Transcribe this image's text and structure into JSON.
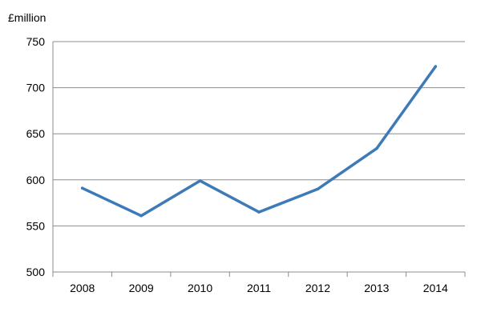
{
  "chart_data": {
    "type": "line",
    "unit_label": "£million",
    "categories": [
      "2008",
      "2009",
      "2010",
      "2011",
      "2012",
      "2013",
      "2014"
    ],
    "series": [
      {
        "values": [
          591,
          561,
          599,
          565,
          590,
          634,
          723
        ],
        "color": "#3d7ab8"
      }
    ],
    "ylim": [
      500,
      750
    ],
    "yticks": [
      "500",
      "550",
      "600",
      "650",
      "700",
      "750"
    ],
    "grid": true,
    "legend": "none"
  }
}
